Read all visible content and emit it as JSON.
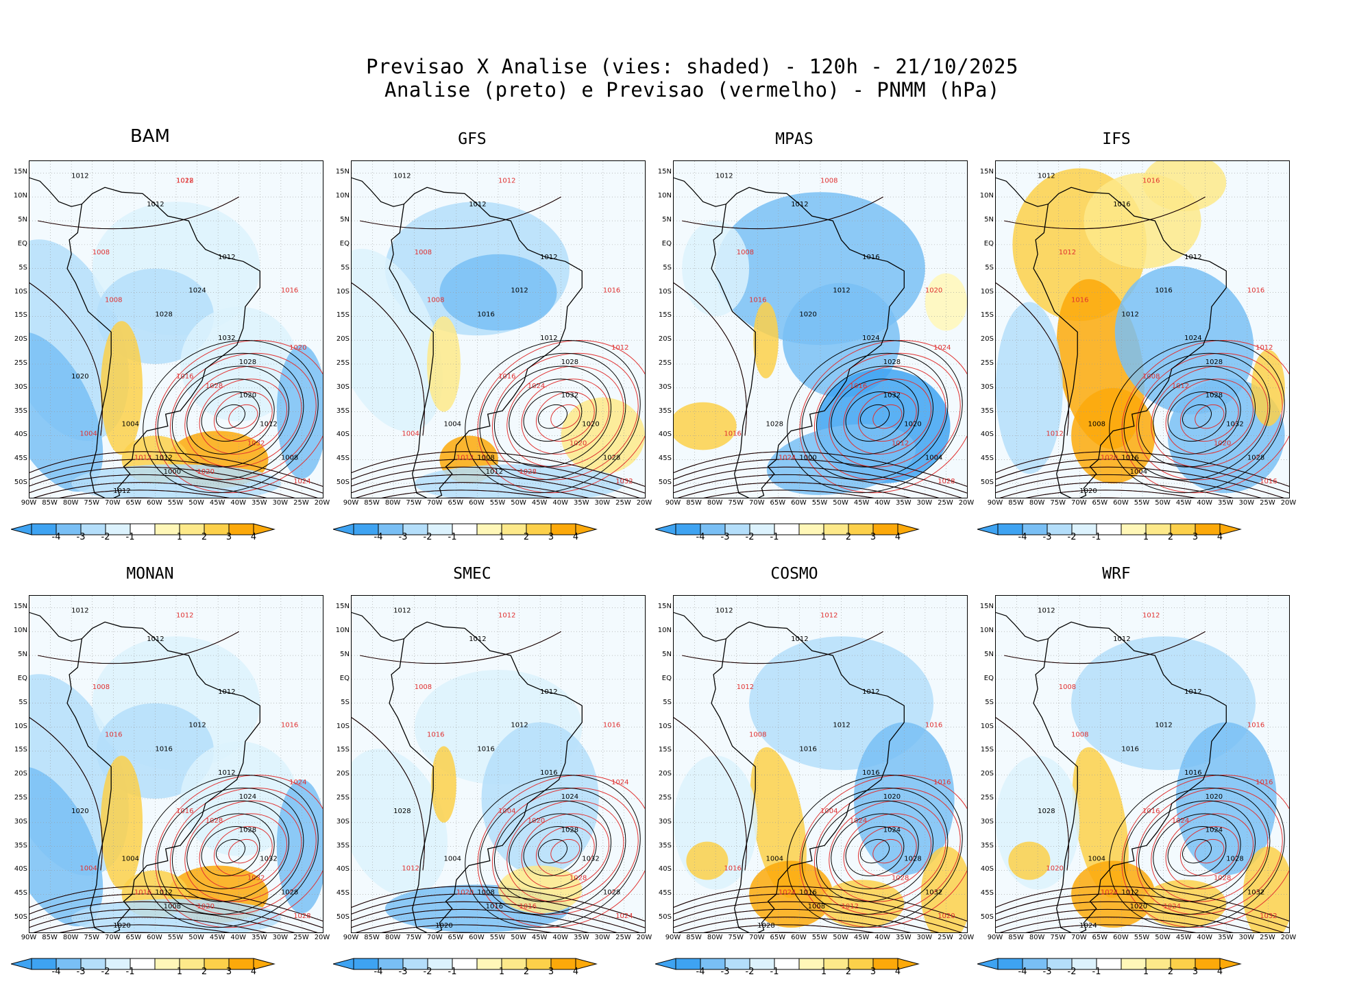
{
  "header": {
    "line1": "Previsao X Analise (vies: shaded) - 120h - 21/10/2025",
    "line2": "Analise (preto) e Previsao (vermelho) - PNMM (hPa)"
  },
  "colors": {
    "neg4": "#3ea3f2",
    "neg3": "#79bff5",
    "neg2": "#b4defa",
    "neg1": "#dcf2fd",
    "pos1": "#fff7b8",
    "pos2": "#fde98a",
    "pos3": "#fcd04a",
    "pos4": "#fca90a",
    "analysis": "#000000",
    "forecast": "#e03030"
  },
  "lat_labels": [
    "15N",
    "10N",
    "5N",
    "EQ",
    "5S",
    "10S",
    "15S",
    "20S",
    "25S",
    "30S",
    "35S",
    "40S",
    "45S",
    "50S"
  ],
  "lon_labels": [
    "90W",
    "85W",
    "80W",
    "75W",
    "70W",
    "65W",
    "60W",
    "55W",
    "50W",
    "45W",
    "40W",
    "35W",
    "30W",
    "25W",
    "20W"
  ],
  "colorbar_labels": [
    "-4",
    "-3",
    "-2",
    "-1",
    "1",
    "2",
    "3",
    "4"
  ],
  "panels": [
    {
      "name": "BAM",
      "bias": "mixed-neg",
      "black": [
        "1012",
        "1012",
        "1012",
        "1024",
        "1028",
        "1032",
        "1028",
        "1020",
        "1012",
        "1008",
        "1012",
        "1004",
        "1000",
        "1012",
        "1020"
      ],
      "red": [
        "1012",
        "1008",
        "1008",
        "1016",
        "1020",
        "1028",
        "1032",
        "1024",
        "1012",
        "1004",
        "1016",
        "1020",
        "1028"
      ]
    },
    {
      "name": "GFS",
      "bias": "neg",
      "black": [
        "1012",
        "1012",
        "1012",
        "1012",
        "1016",
        "1012",
        "1028",
        "1032",
        "1020",
        "1028",
        "1008",
        "1004",
        "1012"
      ],
      "red": [
        "1012",
        "1008",
        "1008",
        "1016",
        "1012",
        "1024",
        "1020",
        "1032",
        "1012",
        "1004",
        "1016",
        "1028"
      ]
    },
    {
      "name": "MPAS",
      "bias": "neg-strong",
      "black": [
        "1012",
        "1012",
        "1016",
        "1012",
        "1020",
        "1024",
        "1028",
        "1032",
        "1020",
        "1004",
        "1000",
        "1028"
      ],
      "red": [
        "1008",
        "1008",
        "1016",
        "1020",
        "1024",
        "1016",
        "1012",
        "1028",
        "1024",
        "1016"
      ]
    },
    {
      "name": "IFS",
      "bias": "pos",
      "black": [
        "1012",
        "1016",
        "1012",
        "1016",
        "1012",
        "1024",
        "1028",
        "1028",
        "1032",
        "1028",
        "1016",
        "1008",
        "1004",
        "1020"
      ],
      "red": [
        "1016",
        "1012",
        "1016",
        "1016",
        "1012",
        "1012",
        "1020",
        "1016",
        "1020",
        "1012",
        "1008"
      ]
    },
    {
      "name": "MONAN",
      "bias": "mixed-neg",
      "black": [
        "1012",
        "1012",
        "1012",
        "1012",
        "1016",
        "1012",
        "1024",
        "1028",
        "1032",
        "1028",
        "1012",
        "1004",
        "1008",
        "1020",
        "1020"
      ],
      "red": [
        "1012",
        "1008",
        "1016",
        "1016",
        "1024",
        "1028",
        "1032",
        "1028",
        "1016",
        "1004",
        "1016",
        "1020"
      ]
    },
    {
      "name": "SMEC",
      "bias": "neg-light",
      "black": [
        "1012",
        "1012",
        "1012",
        "1012",
        "1016",
        "1016",
        "1024",
        "1028",
        "1032",
        "1028",
        "1008",
        "1004",
        "1016",
        "1020",
        "1028"
      ],
      "red": [
        "1012",
        "1008",
        "1016",
        "1016",
        "1024",
        "1020",
        "1028",
        "1024",
        "1020",
        "1012",
        "1004",
        "1016"
      ]
    },
    {
      "name": "COSMO",
      "bias": "mixed",
      "black": [
        "1012",
        "1012",
        "1012",
        "1012",
        "1016",
        "1016",
        "1020",
        "1024",
        "1028",
        "1032",
        "1016",
        "1004",
        "1008",
        "1028"
      ],
      "red": [
        "1012",
        "1012",
        "1008",
        "1016",
        "1016",
        "1024",
        "1028",
        "1020",
        "1024",
        "1016",
        "1004",
        "1012"
      ]
    },
    {
      "name": "WRF",
      "bias": "mixed",
      "black": [
        "1012",
        "1012",
        "1012",
        "1012",
        "1016",
        "1016",
        "1020",
        "1024",
        "1028",
        "1032",
        "1012",
        "1004",
        "1020",
        "1024",
        "1028"
      ],
      "red": [
        "1012",
        "1008",
        "1008",
        "1016",
        "1016",
        "1024",
        "1028",
        "1032",
        "1024",
        "1020",
        "1016",
        "1024"
      ]
    }
  ]
}
